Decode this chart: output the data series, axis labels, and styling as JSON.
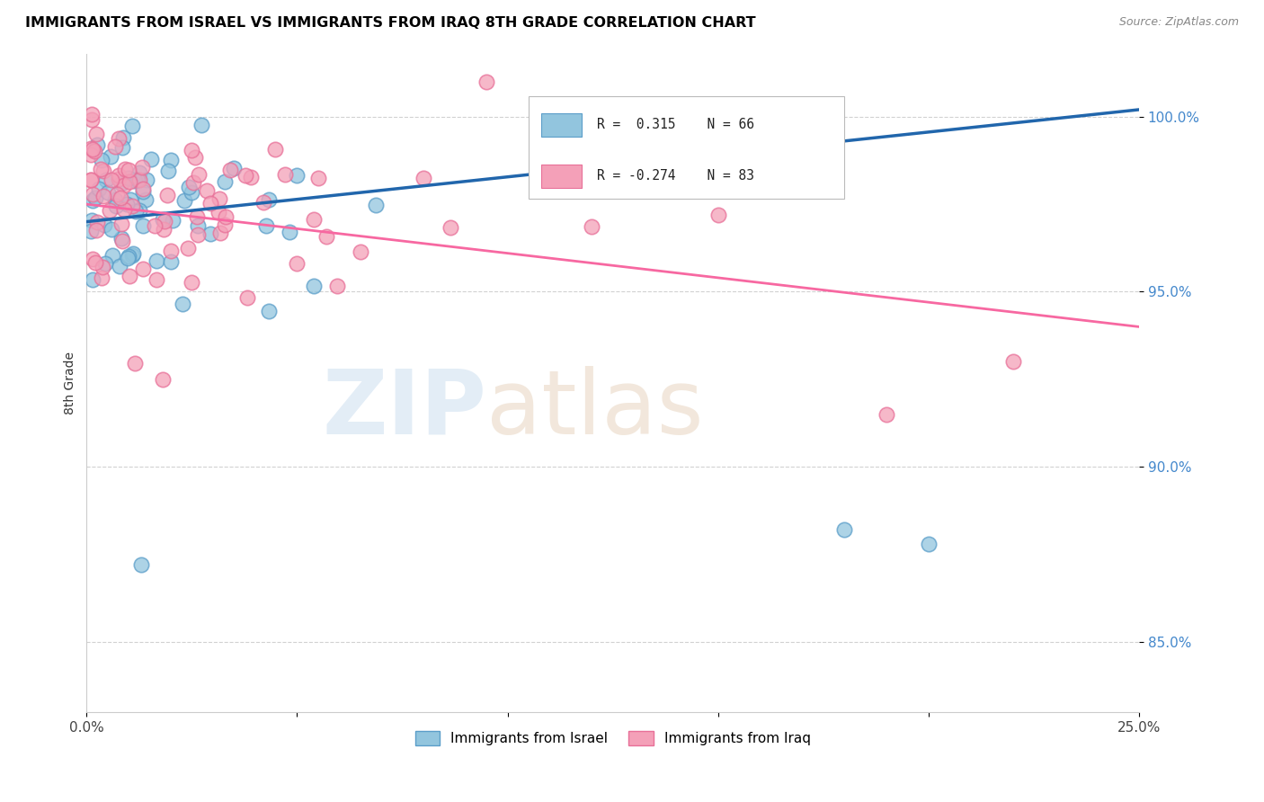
{
  "title": "IMMIGRANTS FROM ISRAEL VS IMMIGRANTS FROM IRAQ 8TH GRADE CORRELATION CHART",
  "source": "Source: ZipAtlas.com",
  "ylabel": "8th Grade",
  "y_ticks": [
    85.0,
    90.0,
    95.0,
    100.0
  ],
  "xlim": [
    0.0,
    0.25
  ],
  "ylim": [
    83.0,
    101.8
  ],
  "legend_israel": "Immigrants from Israel",
  "legend_iraq": "Immigrants from Iraq",
  "R_israel": 0.315,
  "N_israel": 66,
  "R_iraq": -0.274,
  "N_iraq": 83,
  "israel_color": "#92c5de",
  "iraq_color": "#f4a0b8",
  "israel_line_color": "#2166ac",
  "iraq_line_color": "#f768a1",
  "israel_edge_color": "#5b9ec9",
  "iraq_edge_color": "#e87098"
}
